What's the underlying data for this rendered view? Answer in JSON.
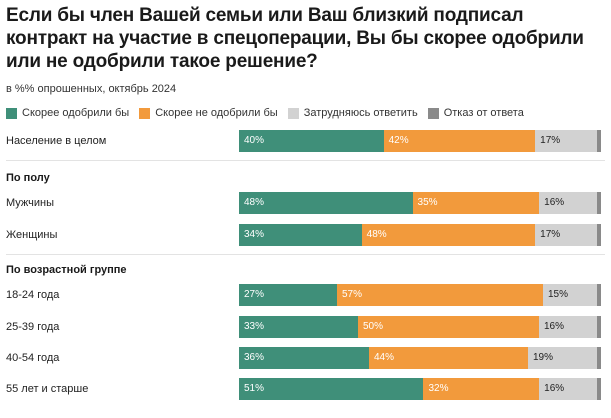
{
  "title": "Если бы член Вашей семьи или Ваш близкий подписал контракт на участие в спецоперации, Вы бы скорее одобрили или не одобрили такое решение?",
  "subtitle": "в %% опрошенных, октябрь 2024",
  "colors": {
    "approve": "#3f8f79",
    "disapprove": "#f29a3c",
    "unsure": "#d2d2d2",
    "refuse": "#8a8a8a"
  },
  "chart_data": {
    "type": "bar",
    "orientation": "horizontal",
    "stacked": true,
    "title": "Если бы член Вашей семьи или Ваш близкий подписал контракт на участие в спецоперации, Вы бы скорее одобрили или не одобрили такое решение?",
    "subtitle": "в %% опрошенных, октябрь 2024",
    "legend": [
      "Скорее одобрили бы",
      "Скорее не одобрили бы",
      "Затрудняюсь ответить",
      "Отказ от ответа"
    ],
    "groups": [
      {
        "header": "",
        "rows": [
          {
            "label": "Население в целом",
            "values": [
              40,
              42,
              17,
              1
            ]
          }
        ]
      },
      {
        "header": "По полу",
        "rows": [
          {
            "label": "Мужчины",
            "values": [
              48,
              35,
              16,
              1
            ]
          },
          {
            "label": "Женщины",
            "values": [
              34,
              48,
              17,
              1
            ]
          }
        ]
      },
      {
        "header": "По возрастной группе",
        "rows": [
          {
            "label": "18-24 года",
            "values": [
              27,
              57,
              15,
              1
            ]
          },
          {
            "label": "25-39 года",
            "values": [
              33,
              50,
              16,
              1
            ]
          },
          {
            "label": "40-54 года",
            "values": [
              36,
              44,
              19,
              1
            ]
          },
          {
            "label": "55 лет и старше",
            "values": [
              51,
              32,
              16,
              1
            ]
          }
        ]
      }
    ],
    "series": [
      {
        "name": "Скорее одобрили бы",
        "key": "approve"
      },
      {
        "name": "Скорее не одобрили бы",
        "key": "disapprove"
      },
      {
        "name": "Затрудняюсь ответить",
        "key": "unsure"
      },
      {
        "name": "Отказ от ответа",
        "key": "refuse"
      }
    ],
    "value_suffix": "%",
    "xlim": [
      0,
      100
    ]
  }
}
